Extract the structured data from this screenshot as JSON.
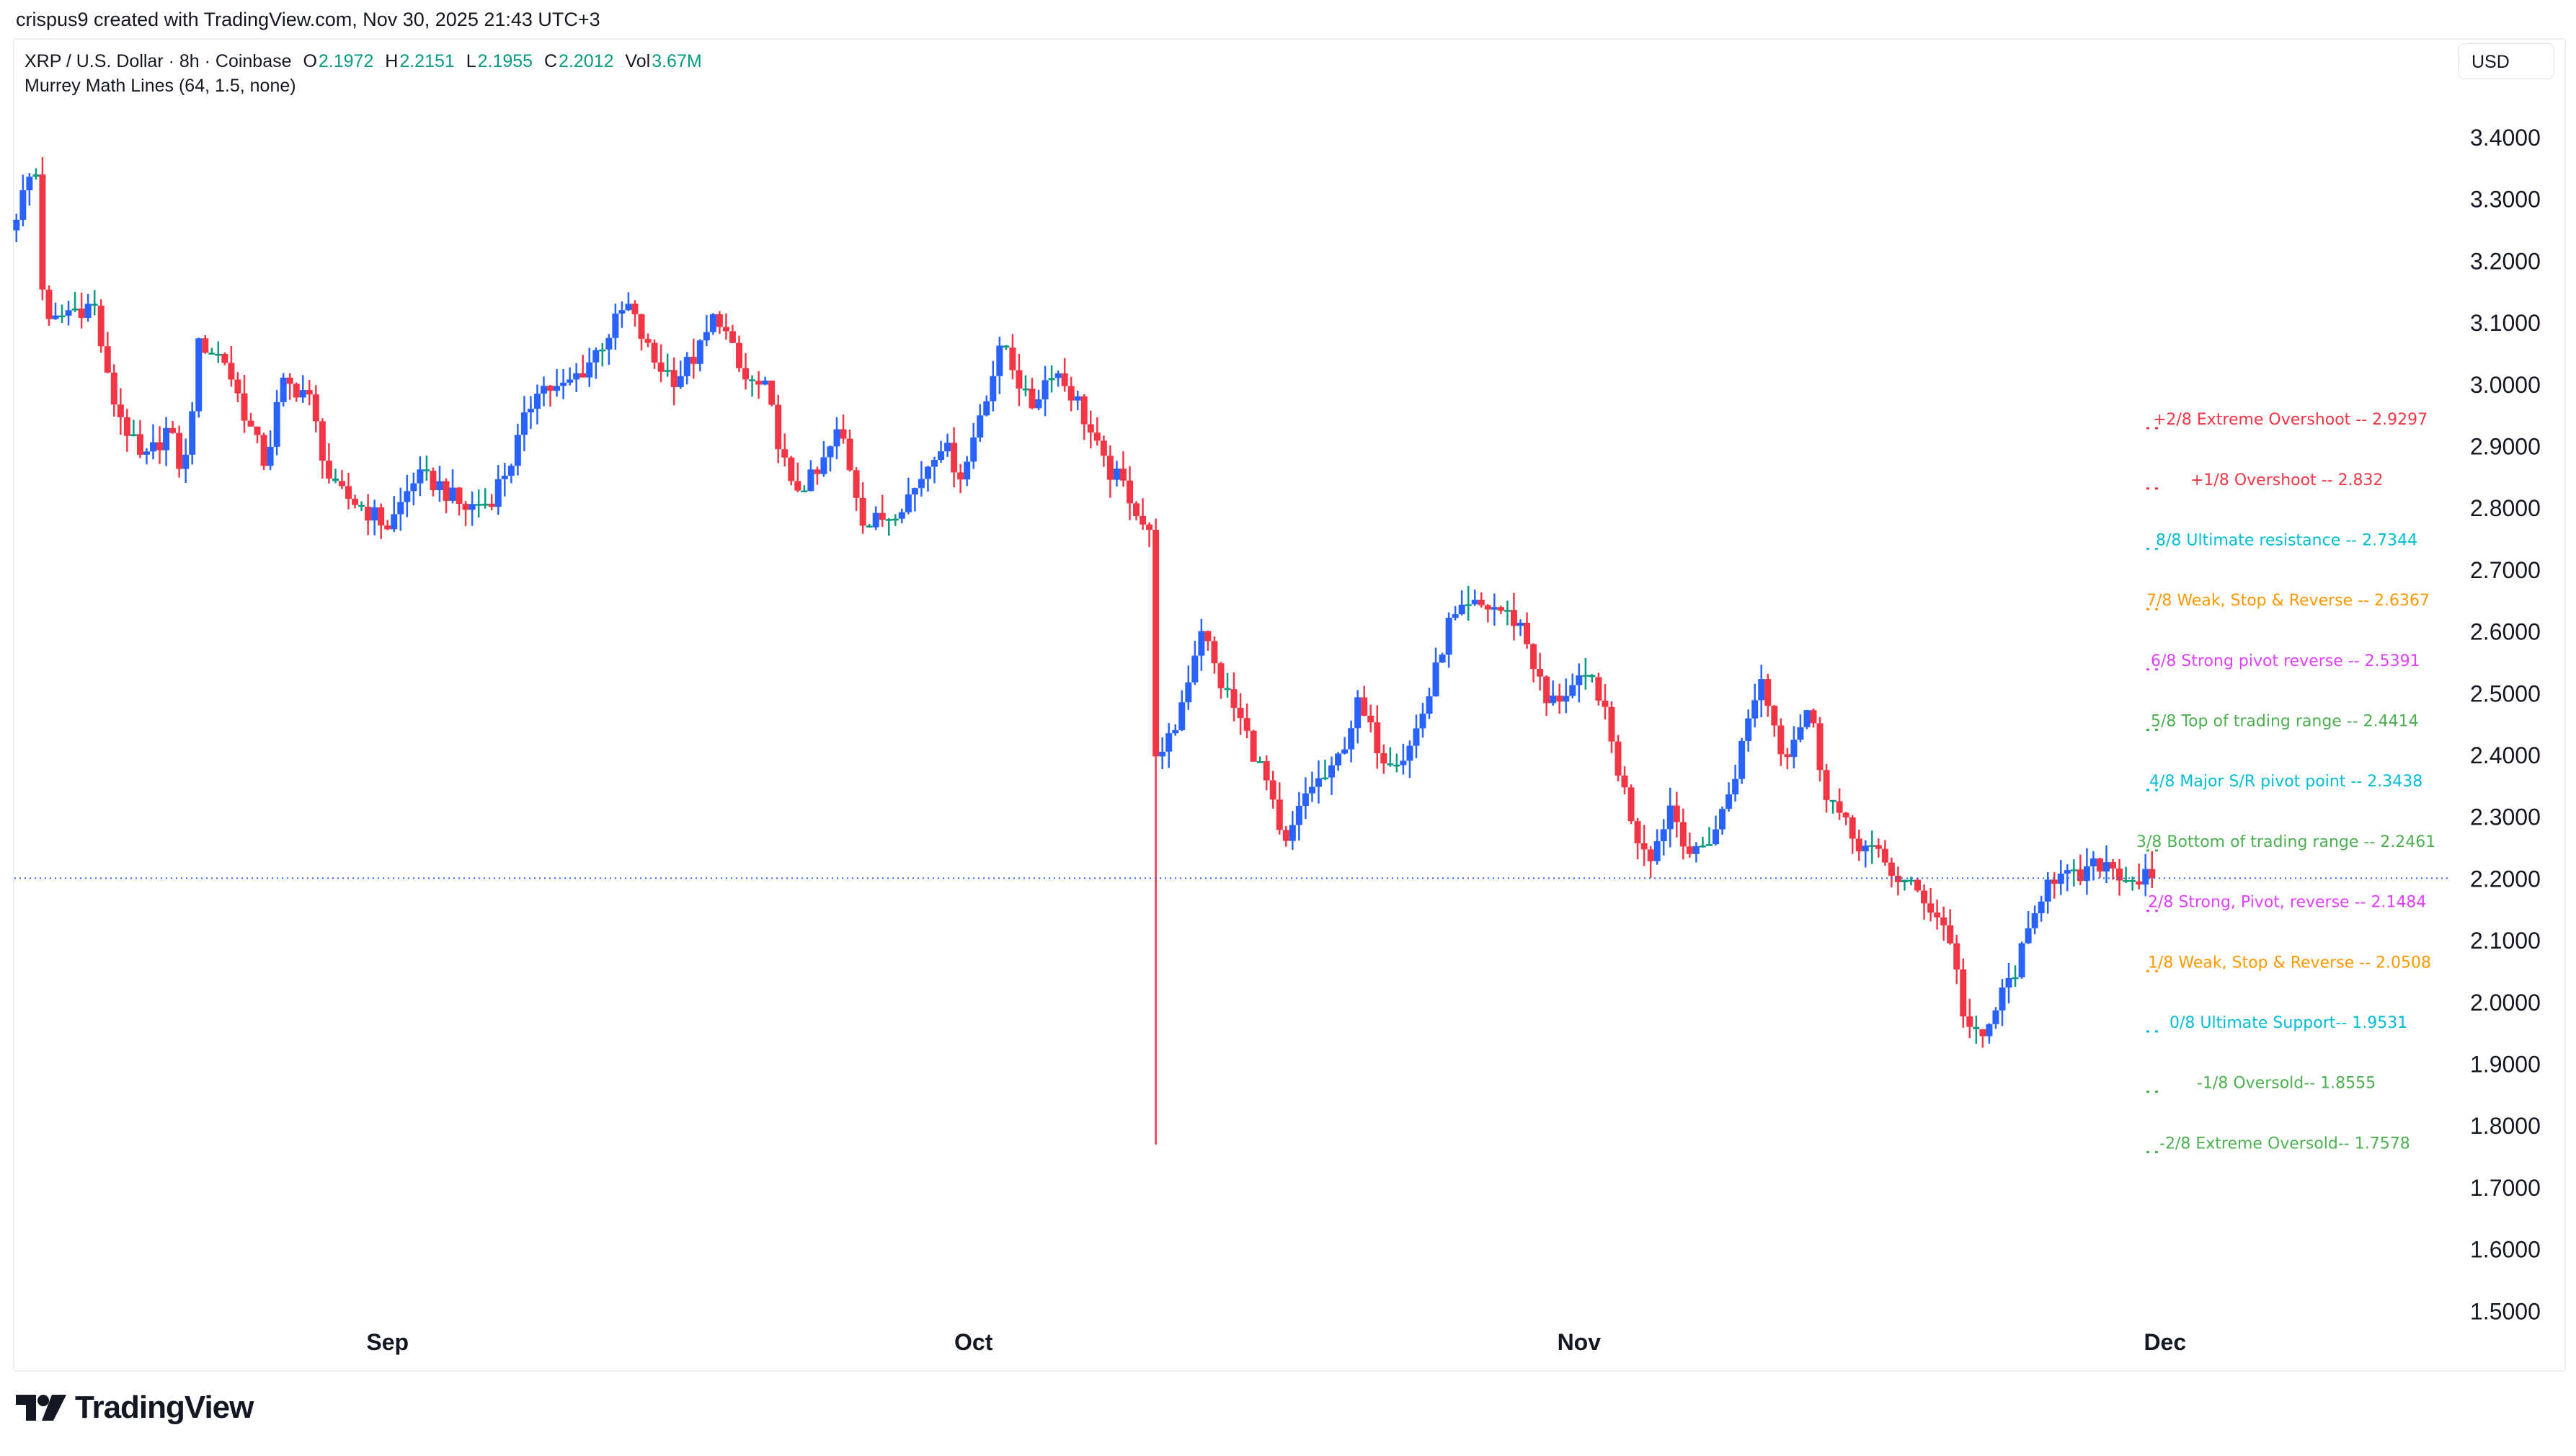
{
  "credit": "crispus9 created with TradingView.com, Nov 30, 2025 21:43 UTC+3",
  "legend": {
    "symbol": "XRP / U.S. Dollar · 8h · Coinbase",
    "o_label": "O",
    "o": "2.1972",
    "h_label": "H",
    "h": "2.2151",
    "l_label": "L",
    "l": "2.1955",
    "c_label": "C",
    "c": "2.2012",
    "vol_label": "Vol",
    "vol": "3.67M",
    "indicator": "Murrey Math Lines (64, 1.5, none)"
  },
  "currency": "USD",
  "logo": "TradingView",
  "colors": {
    "up": "#2962ff",
    "down": "#f23645",
    "neutral": "#089981",
    "last_price": "#2962ff"
  },
  "chart_data": {
    "type": "candlestick",
    "interval": "8h",
    "title": "XRP / U.S. Dollar · 8h · Coinbase",
    "ylim": [
      1.5,
      3.4
    ],
    "y_ticks": [
      "3.4000",
      "3.3000",
      "3.2000",
      "3.1000",
      "3.0000",
      "2.9000",
      "2.8000",
      "2.7000",
      "2.6000",
      "2.5000",
      "2.4000",
      "2.3000",
      "2.2000",
      "2.1000",
      "2.0000",
      "1.9000",
      "1.8000",
      "1.7000",
      "1.6000",
      "1.5000"
    ],
    "x_ticks": [
      {
        "label": "Sep",
        "day": 19
      },
      {
        "label": "Oct",
        "day": 49
      },
      {
        "label": "Nov",
        "day": 80
      },
      {
        "label": "Dec",
        "day": 110
      }
    ],
    "x_range_days": [
      0,
      110
    ],
    "last_price": 2.2012,
    "crash_wick": {
      "day": 58.7,
      "low": 1.77
    },
    "close_path": [
      [
        0,
        3.25
      ],
      [
        1.3,
        3.36
      ],
      [
        1.8,
        3.09
      ],
      [
        3.0,
        3.12
      ],
      [
        4.3,
        3.13
      ],
      [
        5.1,
        2.99
      ],
      [
        6.8,
        2.87
      ],
      [
        8.1,
        2.93
      ],
      [
        8.9,
        2.85
      ],
      [
        9.7,
        3.07
      ],
      [
        11.0,
        3.04
      ],
      [
        12.3,
        2.93
      ],
      [
        13.1,
        2.87
      ],
      [
        13.9,
        3.0
      ],
      [
        15.2,
        2.99
      ],
      [
        16.5,
        2.83
      ],
      [
        17.7,
        2.81
      ],
      [
        19.4,
        2.77
      ],
      [
        20.7,
        2.85
      ],
      [
        21.9,
        2.84
      ],
      [
        23.2,
        2.8
      ],
      [
        24.5,
        2.81
      ],
      [
        25.7,
        2.88
      ],
      [
        27.0,
        3.0
      ],
      [
        28.2,
        2.99
      ],
      [
        29.5,
        3.03
      ],
      [
        30.8,
        3.09
      ],
      [
        31.6,
        3.13
      ],
      [
        32.9,
        3.04
      ],
      [
        34.1,
        3.01
      ],
      [
        35.4,
        3.06
      ],
      [
        36.2,
        3.12
      ],
      [
        37.5,
        3.01
      ],
      [
        38.7,
        2.99
      ],
      [
        40.0,
        2.83
      ],
      [
        41.3,
        2.85
      ],
      [
        42.5,
        2.93
      ],
      [
        43.8,
        2.77
      ],
      [
        45.0,
        2.79
      ],
      [
        46.3,
        2.83
      ],
      [
        47.6,
        2.91
      ],
      [
        48.8,
        2.85
      ],
      [
        49.7,
        2.96
      ],
      [
        50.9,
        3.07
      ],
      [
        52.2,
        2.96
      ],
      [
        53.4,
        3.03
      ],
      [
        54.7,
        2.97
      ],
      [
        56.0,
        2.87
      ],
      [
        57.2,
        2.83
      ],
      [
        58.4,
        2.75
      ],
      [
        58.7,
        2.37
      ],
      [
        59.7,
        2.45
      ],
      [
        61.0,
        2.61
      ],
      [
        61.8,
        2.53
      ],
      [
        63.1,
        2.45
      ],
      [
        64.4,
        2.35
      ],
      [
        65.2,
        2.24
      ],
      [
        66.5,
        2.35
      ],
      [
        67.7,
        2.37
      ],
      [
        69.0,
        2.48
      ],
      [
        70.3,
        2.4
      ],
      [
        71.5,
        2.4
      ],
      [
        72.8,
        2.51
      ],
      [
        73.6,
        2.61
      ],
      [
        74.9,
        2.64
      ],
      [
        76.1,
        2.64
      ],
      [
        77.4,
        2.61
      ],
      [
        78.7,
        2.48
      ],
      [
        79.9,
        2.51
      ],
      [
        81.2,
        2.52
      ],
      [
        82.4,
        2.37
      ],
      [
        83.3,
        2.27
      ],
      [
        84.1,
        2.24
      ],
      [
        85.0,
        2.32
      ],
      [
        86.2,
        2.23
      ],
      [
        87.5,
        2.29
      ],
      [
        88.3,
        2.37
      ],
      [
        89.6,
        2.53
      ],
      [
        90.8,
        2.4
      ],
      [
        92.1,
        2.48
      ],
      [
        92.9,
        2.35
      ],
      [
        94.2,
        2.27
      ],
      [
        95.5,
        2.24
      ],
      [
        96.7,
        2.2
      ],
      [
        98.0,
        2.17
      ],
      [
        99.3,
        2.11
      ],
      [
        100.1,
        1.97
      ],
      [
        100.9,
        1.93
      ],
      [
        101.8,
        2.0
      ],
      [
        102.6,
        2.05
      ],
      [
        103.4,
        2.11
      ],
      [
        104.3,
        2.21
      ],
      [
        105.1,
        2.2
      ],
      [
        105.9,
        2.2
      ],
      [
        107.2,
        2.23
      ],
      [
        108.5,
        2.2
      ],
      [
        109.6,
        2.2012
      ]
    ],
    "murrey_lines": [
      {
        "label": "+2/8 Extreme Overshoot --  2.9297",
        "value": 2.9297,
        "color": "#f23645"
      },
      {
        "label": "+1/8 Overshoot --  2.832",
        "value": 2.832,
        "color": "#f23645"
      },
      {
        "label": "8/8 Ultimate resistance --  2.7344",
        "value": 2.7344,
        "color": "#00bcd4"
      },
      {
        "label": "7/8 Weak, Stop & Reverse --  2.6367",
        "value": 2.6367,
        "color": "#ff9800"
      },
      {
        "label": "6/8 Strong pivot reverse --  2.5391",
        "value": 2.5391,
        "color": "#e040fb"
      },
      {
        "label": "5/8 Top of trading range --  2.4414",
        "value": 2.4414,
        "color": "#4caf50"
      },
      {
        "label": "4/8 Major S/R pivot point --  2.3438",
        "value": 2.3438,
        "color": "#00bcd4"
      },
      {
        "label": "3/8 Bottom of trading range --  2.2461",
        "value": 2.2461,
        "color": "#4caf50"
      },
      {
        "label": "2/8 Strong, Pivot, reverse --  2.1484",
        "value": 2.1484,
        "color": "#e040fb"
      },
      {
        "label": "1/8 Weak, Stop & Reverse --  2.0508",
        "value": 2.0508,
        "color": "#ff9800"
      },
      {
        "label": "0/8 Ultimate Support--  1.9531",
        "value": 1.9531,
        "color": "#00bcd4"
      },
      {
        "label": "-1/8 Oversold--  1.8555",
        "value": 1.8555,
        "color": "#4caf50"
      },
      {
        "label": "-2/8 Extreme Oversold--  1.7578",
        "value": 1.7578,
        "color": "#4caf50"
      }
    ]
  }
}
